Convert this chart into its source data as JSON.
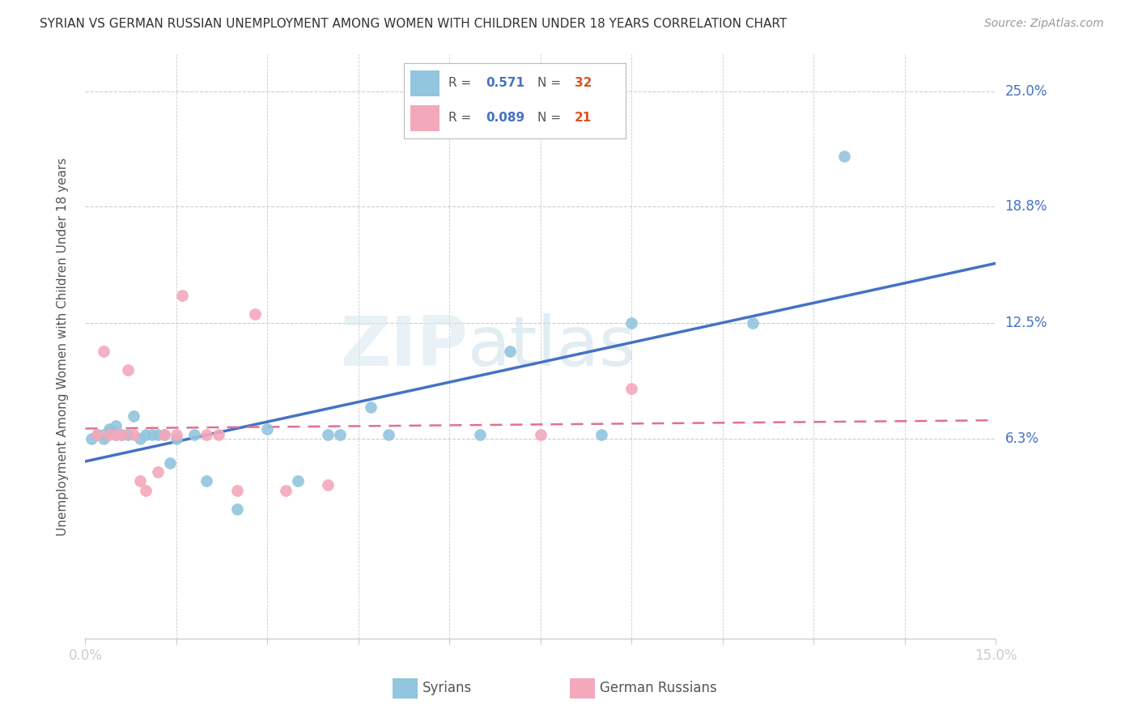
{
  "title": "SYRIAN VS GERMAN RUSSIAN UNEMPLOYMENT AMONG WOMEN WITH CHILDREN UNDER 18 YEARS CORRELATION CHART",
  "source": "Source: ZipAtlas.com",
  "ylabel": "Unemployment Among Women with Children Under 18 years",
  "ytick_labels": [
    "25.0%",
    "18.8%",
    "12.5%",
    "6.3%"
  ],
  "ytick_values": [
    0.25,
    0.188,
    0.125,
    0.063
  ],
  "xlim": [
    0.0,
    0.15
  ],
  "ylim": [
    -0.045,
    0.27
  ],
  "watermark_text": "ZIPatlas",
  "legend1_r": "0.571",
  "legend1_n": "32",
  "legend2_r": "0.089",
  "legend2_n": "21",
  "syrians_color": "#92C5DE",
  "german_russian_color": "#F4A8BB",
  "line_syrian_color": "#4472C4",
  "line_gr_color": "#E07090",
  "syrians_x": [
    0.001,
    0.002,
    0.003,
    0.003,
    0.004,
    0.005,
    0.005,
    0.006,
    0.007,
    0.008,
    0.009,
    0.01,
    0.011,
    0.012,
    0.013,
    0.014,
    0.015,
    0.018,
    0.02,
    0.025,
    0.03,
    0.035,
    0.04,
    0.042,
    0.047,
    0.05,
    0.065,
    0.07,
    0.085,
    0.09,
    0.11,
    0.125
  ],
  "syrians_y": [
    0.063,
    0.065,
    0.063,
    0.065,
    0.068,
    0.065,
    0.07,
    0.065,
    0.065,
    0.075,
    0.063,
    0.065,
    0.065,
    0.065,
    0.065,
    0.05,
    0.063,
    0.065,
    0.04,
    0.025,
    0.068,
    0.04,
    0.065,
    0.065,
    0.08,
    0.065,
    0.065,
    0.11,
    0.065,
    0.125,
    0.125,
    0.215
  ],
  "german_russian_x": [
    0.002,
    0.003,
    0.004,
    0.005,
    0.006,
    0.007,
    0.008,
    0.009,
    0.01,
    0.012,
    0.013,
    0.015,
    0.016,
    0.02,
    0.022,
    0.025,
    0.028,
    0.033,
    0.04,
    0.075,
    0.09
  ],
  "german_russian_y": [
    0.065,
    0.11,
    0.065,
    0.065,
    0.065,
    0.1,
    0.065,
    0.04,
    0.035,
    0.045,
    0.065,
    0.065,
    0.14,
    0.065,
    0.065,
    0.035,
    0.13,
    0.035,
    0.038,
    0.065,
    0.09
  ],
  "grid_color": "#cccccc",
  "background_color": "#ffffff",
  "xtick_positions": [
    0.0,
    0.015,
    0.03,
    0.045,
    0.06,
    0.075,
    0.09,
    0.105,
    0.12,
    0.135,
    0.15
  ],
  "bottom_legend_syrians": "Syrians",
  "bottom_legend_gr": "German Russians"
}
